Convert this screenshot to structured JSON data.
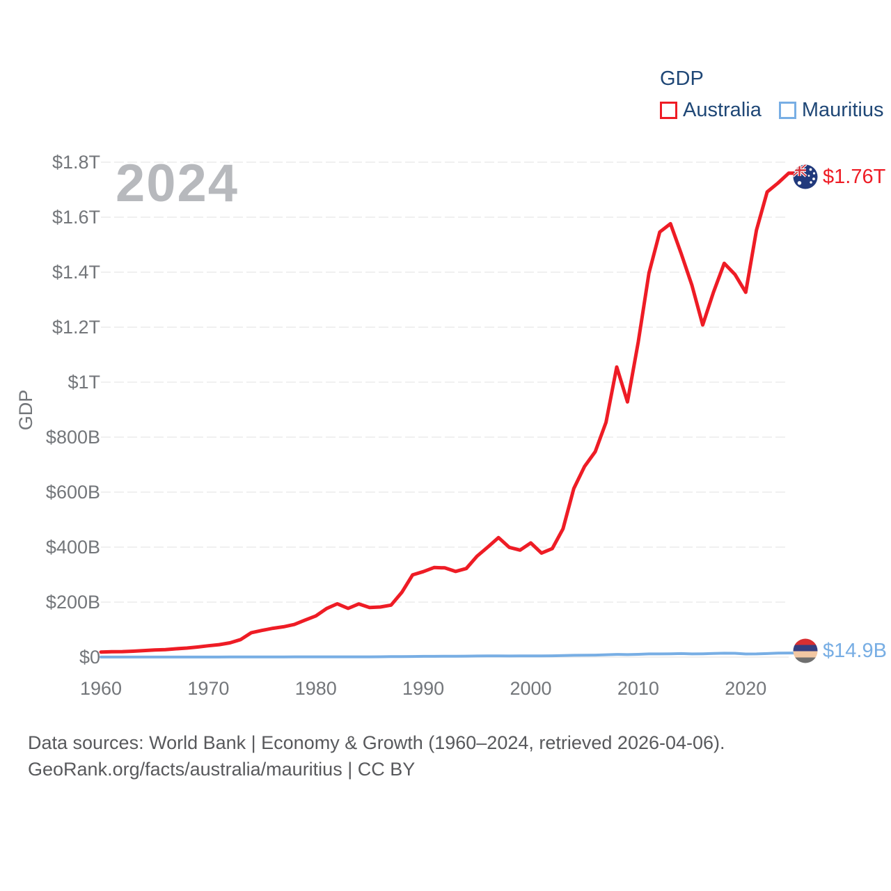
{
  "legend": {
    "title": "GDP",
    "items": [
      {
        "label": "Australia"
      },
      {
        "label": "Mauritius"
      }
    ]
  },
  "y_axis_title": "GDP",
  "footer": {
    "line1": "Data sources: World Bank | Economy & Growth (1960–2024, retrieved 2026-04-06).",
    "line2": "GeoRank.org/facts/australia/mauritius | CC BY"
  },
  "icons": [
    {
      "name": "australia-flag-icon",
      "meaning": "Australia flag in circle"
    },
    {
      "name": "mauritius-flag-icon",
      "meaning": "Mauritius flag in circle"
    }
  ],
  "chart_data": {
    "type": "line",
    "title": "GDP",
    "ylabel": "GDP",
    "xlabel": "",
    "unit": "billion USD (current)",
    "watermark": "2024",
    "grid": true,
    "legend_position": "top-right",
    "x_start": 1960,
    "x_end": 2024,
    "x_ticks": [
      1960,
      1970,
      1980,
      1990,
      2000,
      2010,
      2020
    ],
    "ylim_billions": [
      0,
      1800
    ],
    "y_ticks": [
      0,
      200,
      400,
      600,
      800,
      1000,
      1200,
      1400,
      1600,
      1800
    ],
    "y_tick_labels": [
      "$0",
      "$200B",
      "$400B",
      "$600B",
      "$800B",
      "$1T",
      "$1.2T",
      "$1.4T",
      "$1.6T",
      "$1.8T"
    ],
    "x": [
      1960,
      1961,
      1962,
      1963,
      1964,
      1965,
      1966,
      1967,
      1968,
      1969,
      1970,
      1971,
      1972,
      1973,
      1974,
      1975,
      1976,
      1977,
      1978,
      1979,
      1980,
      1981,
      1982,
      1983,
      1984,
      1985,
      1986,
      1987,
      1988,
      1989,
      1990,
      1991,
      1992,
      1993,
      1994,
      1995,
      1996,
      1997,
      1998,
      1999,
      2000,
      2001,
      2002,
      2003,
      2004,
      2005,
      2006,
      2007,
      2008,
      2009,
      2010,
      2011,
      2012,
      2013,
      2014,
      2015,
      2016,
      2017,
      2018,
      2019,
      2020,
      2021,
      2022,
      2023,
      2024
    ],
    "series": [
      {
        "name": "Australia",
        "color": "#ee1c25",
        "stroke_width": 5,
        "end_label": "$1.76T",
        "values": [
          18.6,
          19.7,
          19.9,
          21.5,
          23.8,
          26.0,
          27.3,
          30.4,
          32.9,
          36.6,
          41.3,
          45.2,
          51.9,
          63.7,
          88.8,
          97.2,
          104.9,
          110.4,
          118.8,
          134.6,
          149.8,
          176.6,
          193.8,
          177.2,
          193.3,
          180.2,
          182.2,
          189.1,
          235.8,
          299.0,
          310.8,
          325.8,
          324.6,
          311.7,
          322.2,
          367.2,
          400.3,
          434.6,
          399.2,
          389.1,
          415.2,
          378.3,
          394.6,
          466.5,
          613.0,
          693.1,
          747.0,
          853.8,
          1055.3,
          928.0,
          1146.1,
          1396.6,
          1546.2,
          1576.2,
          1467.5,
          1351.7,
          1208.0,
          1326.5,
          1432.2,
          1392.0,
          1326.9,
          1552.7,
          1692.0,
          1724.0,
          1760.0
        ]
      },
      {
        "name": "Mauritius",
        "color": "#78aee4",
        "stroke_width": 4,
        "end_label": "$14.9B",
        "values": [
          0.24,
          0.25,
          0.26,
          0.27,
          0.28,
          0.26,
          0.27,
          0.27,
          0.28,
          0.29,
          0.29,
          0.33,
          0.42,
          0.53,
          0.7,
          0.68,
          0.72,
          0.79,
          0.93,
          1.03,
          1.13,
          1.12,
          1.08,
          1.08,
          1.05,
          1.08,
          1.37,
          1.85,
          2.15,
          2.28,
          2.69,
          2.87,
          3.24,
          3.23,
          3.56,
          4.04,
          4.4,
          4.22,
          4.16,
          4.28,
          4.66,
          4.54,
          4.79,
          5.84,
          6.69,
          6.81,
          7.22,
          8.53,
          9.99,
          9.13,
          10.0,
          11.52,
          11.67,
          12.12,
          12.8,
          11.69,
          12.23,
          13.26,
          14.18,
          13.97,
          11.4,
          11.54,
          12.9,
          14.39,
          14.9
        ]
      }
    ]
  }
}
